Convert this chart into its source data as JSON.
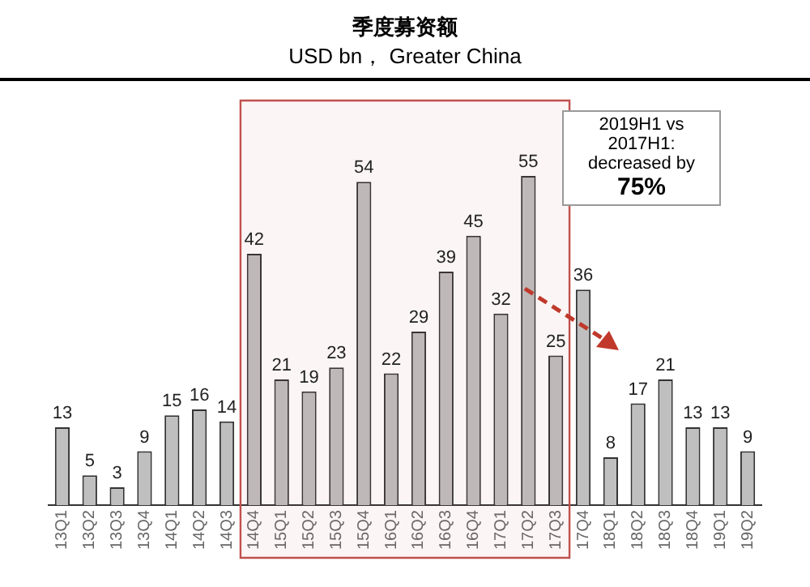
{
  "chart_data": {
    "type": "bar",
    "title": "季度募资额",
    "subtitle": "USD bn， Greater China",
    "categories": [
      "13Q1",
      "13Q2",
      "13Q3",
      "13Q4",
      "14Q1",
      "14Q2",
      "14Q3",
      "14Q4",
      "15Q1",
      "15Q2",
      "15Q3",
      "15Q4",
      "16Q1",
      "16Q2",
      "16Q3",
      "16Q4",
      "17Q1",
      "17Q2",
      "17Q3",
      "17Q4",
      "18Q1",
      "18Q2",
      "18Q3",
      "18Q4",
      "19Q1",
      "19Q2"
    ],
    "values": [
      13,
      5,
      3,
      9,
      15,
      16,
      14,
      42,
      21,
      19,
      23,
      54,
      22,
      29,
      39,
      45,
      32,
      55,
      25,
      36,
      8,
      17,
      21,
      13,
      13,
      9
    ],
    "color": "#bfbfbf",
    "data_labels": true,
    "bands": [
      {
        "axis": "x",
        "from": "14Q4",
        "to": "17Q3",
        "label": null,
        "color": "#c0504d"
      }
    ],
    "annotations": [
      "2019H1 vs 2017H1: decreased by 75%"
    ],
    "grid": false,
    "legend": false
  }
}
